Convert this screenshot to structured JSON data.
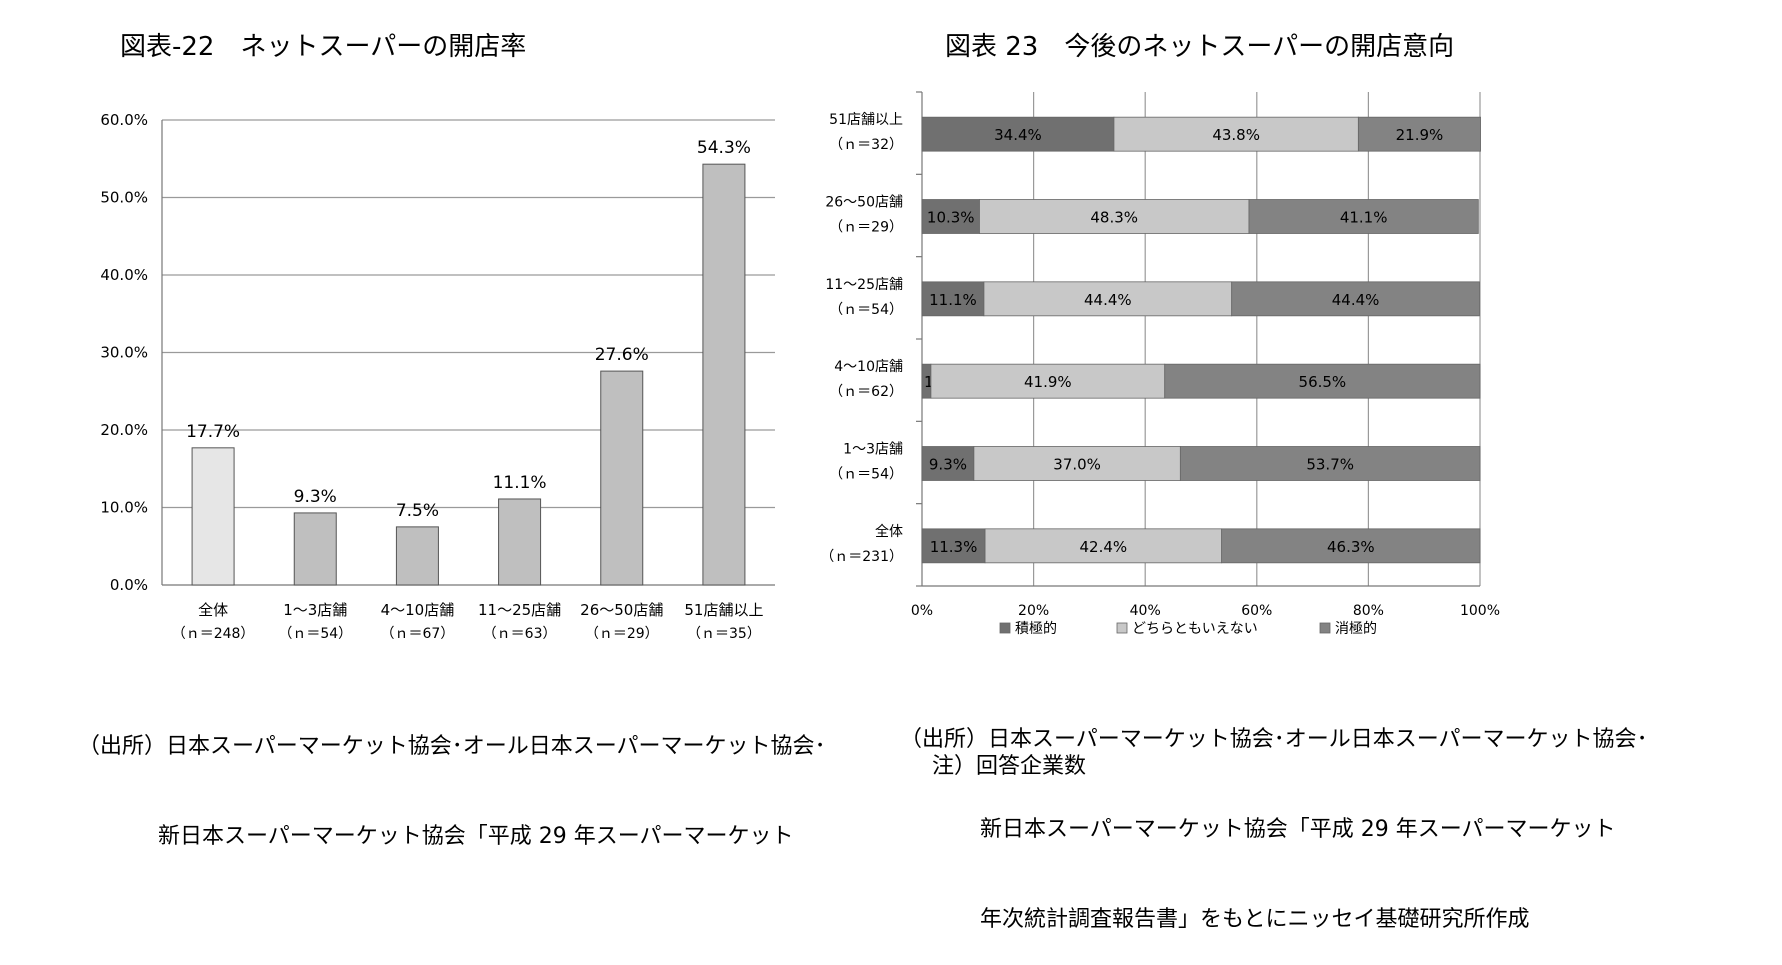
{
  "chart_data": [
    {
      "type": "bar",
      "title": "図表-22　ネットスーパーの開店率",
      "categories": [
        {
          "line1": "全体",
          "line2": "（ｎ＝248）"
        },
        {
          "line1": "1～3店舗",
          "line2": "（ｎ＝54）"
        },
        {
          "line1": "4～10店舗",
          "line2": "（ｎ＝67）"
        },
        {
          "line1": "11～25店舗",
          "line2": "（ｎ＝63）"
        },
        {
          "line1": "26～50店舗",
          "line2": "（ｎ＝29）"
        },
        {
          "line1": "51店舗以上",
          "line2": "（ｎ＝35）"
        }
      ],
      "values": [
        17.7,
        9.3,
        7.5,
        11.1,
        27.6,
        54.3
      ],
      "value_labels": [
        "17.7%",
        "9.3%",
        "7.5%",
        "11.1%",
        "27.6%",
        "54.3%"
      ],
      "ylim": [
        0,
        60
      ],
      "y_ticks": [
        "0.0%",
        "10.0%",
        "20.0%",
        "30.0%",
        "40.0%",
        "50.0%",
        "60.0%"
      ],
      "grid": true,
      "colors": {
        "first_bar": "#e6e6e6",
        "other_bars": "#bfbfbf",
        "stroke": "#555555"
      }
    },
    {
      "type": "bar",
      "orientation": "horizontal",
      "stacked_100": true,
      "title": "図表 23　今後のネットスーパーの開店意向",
      "categories": [
        {
          "line1": "51店舗以上",
          "line2": "（ｎ＝32）"
        },
        {
          "line1": "26～50店舗",
          "line2": "（ｎ＝29）"
        },
        {
          "line1": "11～25店舗",
          "line2": "（ｎ＝54）"
        },
        {
          "line1": "4～10店舗",
          "line2": "（ｎ＝62）"
        },
        {
          "line1": "1～3店舗",
          "line2": "（ｎ＝54）"
        },
        {
          "line1": "全体",
          "line2": "（ｎ＝231）"
        }
      ],
      "series": [
        {
          "name": "積極的",
          "values": [
            34.4,
            10.3,
            11.1,
            1.6,
            9.3,
            11.3
          ],
          "color": "#707070"
        },
        {
          "name": "どちらともいえない",
          "values": [
            43.8,
            48.3,
            44.4,
            41.9,
            37.0,
            42.4
          ],
          "color": "#c8c8c8"
        },
        {
          "name": "消極的",
          "values": [
            21.9,
            41.1,
            44.4,
            56.5,
            53.7,
            46.3
          ],
          "color": "#838383"
        }
      ],
      "x_ticks": [
        "0%",
        "20%",
        "40%",
        "60%",
        "80%",
        "100%"
      ],
      "xlim": [
        0,
        100
      ],
      "grid": true,
      "legend": "bottom"
    }
  ],
  "source_left": {
    "line1": "（出所）日本スーパーマーケット協会･オール日本スーパーマーケット協会･",
    "line2": "新日本スーパーマーケット協会「平成 29 年スーパーマーケット"
  },
  "source_right": {
    "line1": "（出所）日本スーパーマーケット協会･オール日本スーパーマーケット協会･",
    "line2": "新日本スーパーマーケット協会「平成 29 年スーパーマーケット",
    "line3": "年次統計調査報告書」をもとにニッセイ基礎研究所作成",
    "note": "注）回答企業数"
  }
}
